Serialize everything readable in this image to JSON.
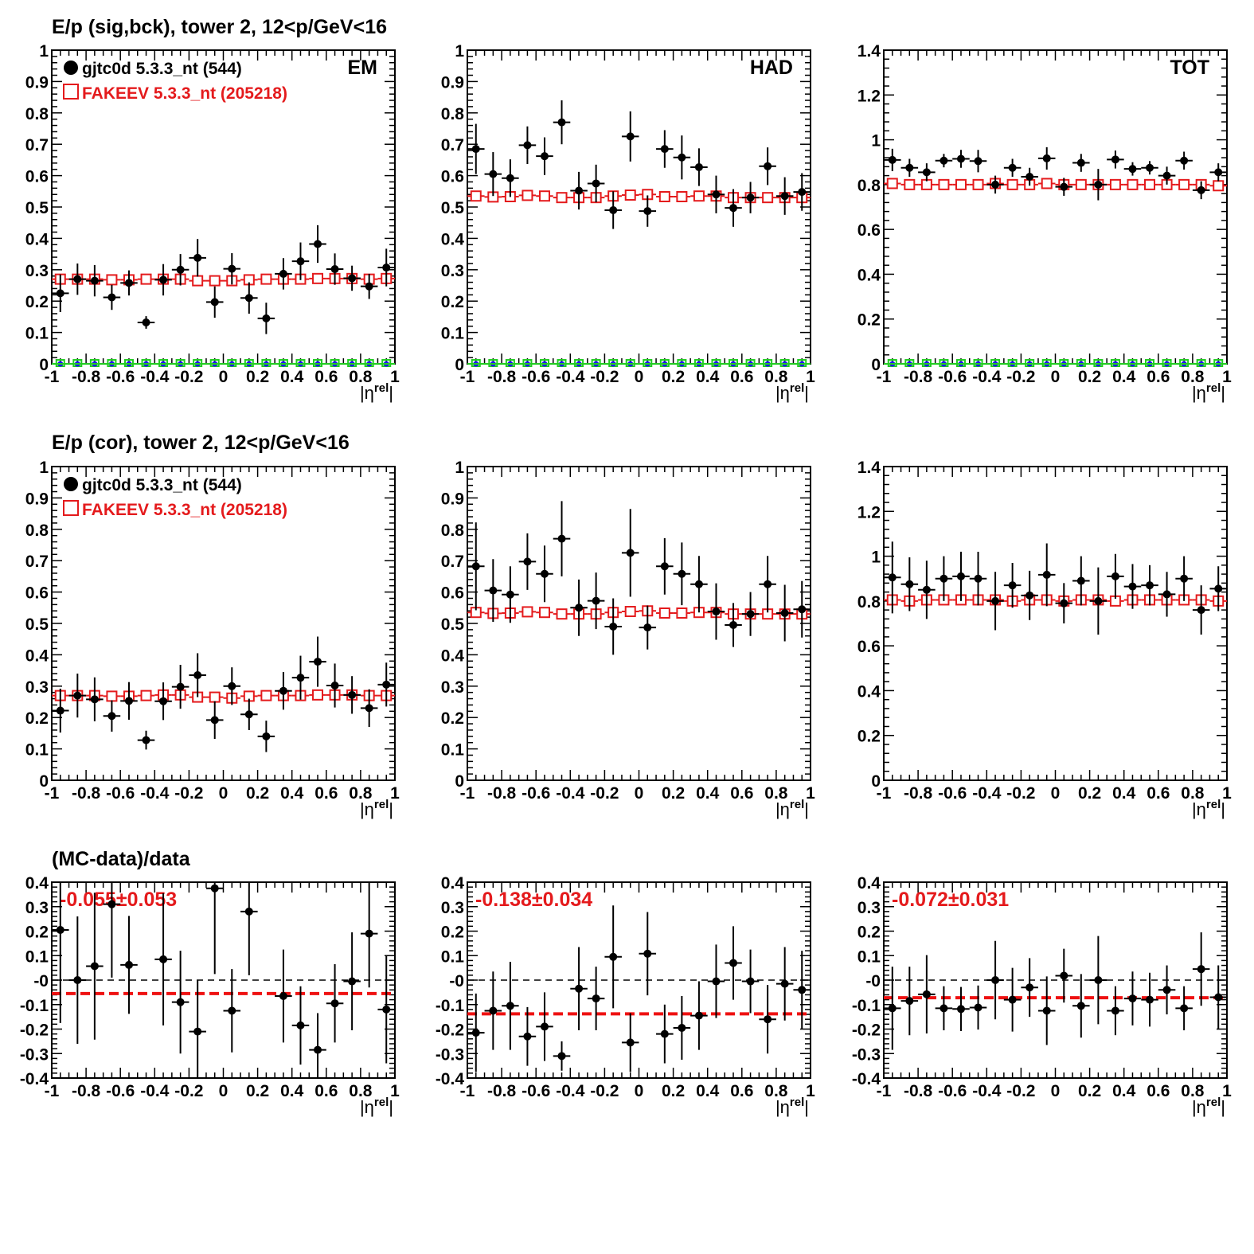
{
  "colors": {
    "data": "#000000",
    "mc": "#e41a1c",
    "bck_mc": "#22cc22",
    "bck_data": "#1a1aee",
    "fit": "#ee1111"
  },
  "row_titles": [
    "E/p (sig,bck), tower 2, 12<p/GeV<16",
    "E/p (cor), tower 2, 12<p/GeV<16",
    "(MC-data)/data"
  ],
  "legend": {
    "data_label": "gjtc0d 5.3.3_nt (544)",
    "mc_label": "FAKEEV 5.3.3_nt (205218)"
  },
  "chart_data": [
    {
      "id": "sigbck-em",
      "type": "scatter",
      "label": "EM",
      "xlabel": "|η^rel|",
      "xlim": [
        -1,
        1
      ],
      "ylim": [
        0,
        1
      ],
      "legend": true,
      "background": true,
      "x": [
        -0.95,
        -0.85,
        -0.75,
        -0.65,
        -0.55,
        -0.45,
        -0.35,
        -0.25,
        -0.15,
        -0.05,
        0.05,
        0.15,
        0.25,
        0.35,
        0.45,
        0.55,
        0.65,
        0.75,
        0.85,
        0.95
      ],
      "series": [
        {
          "name": "gjtc0d 5.3.3_nt (544)",
          "values": [
            0.225,
            0.27,
            0.265,
            0.212,
            0.258,
            0.132,
            0.268,
            0.3,
            0.338,
            0.197,
            0.303,
            0.21,
            0.145,
            0.287,
            0.327,
            0.382,
            0.302,
            0.273,
            0.247,
            0.307
          ],
          "errors": [
            0.06,
            0.05,
            0.05,
            0.04,
            0.04,
            0.02,
            0.05,
            0.05,
            0.06,
            0.05,
            0.05,
            0.05,
            0.05,
            0.05,
            0.06,
            0.06,
            0.05,
            0.04,
            0.04,
            0.06
          ]
        },
        {
          "name": "FAKEEV 5.3.3_nt (205218)",
          "values": [
            0.27,
            0.27,
            0.27,
            0.268,
            0.268,
            0.27,
            0.27,
            0.27,
            0.265,
            0.265,
            0.265,
            0.268,
            0.27,
            0.27,
            0.27,
            0.272,
            0.272,
            0.272,
            0.27,
            0.272
          ]
        }
      ]
    },
    {
      "id": "sigbck-had",
      "type": "scatter",
      "label": "HAD",
      "xlabel": "|η^rel|",
      "xlim": [
        -1,
        1
      ],
      "ylim": [
        0,
        1
      ],
      "legend": false,
      "background": true,
      "x": [
        -0.95,
        -0.85,
        -0.75,
        -0.65,
        -0.55,
        -0.45,
        -0.35,
        -0.25,
        -0.15,
        -0.05,
        0.05,
        0.15,
        0.25,
        0.35,
        0.45,
        0.55,
        0.65,
        0.75,
        0.85,
        0.95
      ],
      "series": [
        {
          "name": "gjtc0d 5.3.3_nt (544)",
          "values": [
            0.685,
            0.605,
            0.592,
            0.697,
            0.662,
            0.77,
            0.552,
            0.575,
            0.49,
            0.725,
            0.487,
            0.685,
            0.658,
            0.627,
            0.54,
            0.497,
            0.53,
            0.63,
            0.535,
            0.548
          ],
          "errors": [
            0.08,
            0.07,
            0.06,
            0.06,
            0.06,
            0.07,
            0.06,
            0.06,
            0.06,
            0.08,
            0.05,
            0.06,
            0.07,
            0.06,
            0.06,
            0.06,
            0.05,
            0.06,
            0.06,
            0.06
          ]
        },
        {
          "name": "FAKEEV 5.3.3_nt (205218)",
          "values": [
            0.535,
            0.532,
            0.533,
            0.537,
            0.535,
            0.53,
            0.53,
            0.53,
            0.535,
            0.538,
            0.54,
            0.533,
            0.533,
            0.535,
            0.535,
            0.53,
            0.53,
            0.53,
            0.53,
            0.53
          ]
        }
      ]
    },
    {
      "id": "sigbck-tot",
      "type": "scatter",
      "label": "TOT",
      "xlabel": "|η^rel|",
      "xlim": [
        -1,
        1
      ],
      "ylim": [
        0,
        1.4
      ],
      "legend": false,
      "background": true,
      "x": [
        -0.95,
        -0.85,
        -0.75,
        -0.65,
        -0.55,
        -0.45,
        -0.35,
        -0.25,
        -0.15,
        -0.05,
        0.05,
        0.15,
        0.25,
        0.35,
        0.45,
        0.55,
        0.65,
        0.75,
        0.85,
        0.95
      ],
      "series": [
        {
          "name": "gjtc0d 5.3.3_nt (544)",
          "values": [
            0.91,
            0.875,
            0.855,
            0.907,
            0.915,
            0.905,
            0.8,
            0.875,
            0.835,
            0.917,
            0.79,
            0.897,
            0.8,
            0.912,
            0.87,
            0.875,
            0.84,
            0.907,
            0.775,
            0.855
          ],
          "errors": [
            0.05,
            0.04,
            0.04,
            0.03,
            0.04,
            0.05,
            0.04,
            0.04,
            0.04,
            0.05,
            0.04,
            0.04,
            0.07,
            0.04,
            0.03,
            0.03,
            0.04,
            0.04,
            0.04,
            0.04
          ]
        },
        {
          "name": "FAKEEV 5.3.3_nt (205218)",
          "values": [
            0.805,
            0.8,
            0.8,
            0.8,
            0.8,
            0.8,
            0.805,
            0.8,
            0.8,
            0.805,
            0.8,
            0.8,
            0.8,
            0.8,
            0.8,
            0.8,
            0.8,
            0.8,
            0.8,
            0.795
          ]
        }
      ]
    },
    {
      "id": "cor-em",
      "type": "scatter",
      "label": "",
      "xlabel": "|η^rel|",
      "xlim": [
        -1,
        1
      ],
      "ylim": [
        0,
        1
      ],
      "legend": true,
      "background": false,
      "x": [
        -0.95,
        -0.85,
        -0.75,
        -0.65,
        -0.55,
        -0.45,
        -0.35,
        -0.25,
        -0.15,
        -0.05,
        0.05,
        0.15,
        0.25,
        0.35,
        0.45,
        0.55,
        0.65,
        0.75,
        0.85,
        0.95
      ],
      "series": [
        {
          "name": "gjtc0d 5.3.3_nt (544)",
          "values": [
            0.222,
            0.27,
            0.258,
            0.205,
            0.253,
            0.128,
            0.252,
            0.298,
            0.335,
            0.192,
            0.3,
            0.21,
            0.14,
            0.285,
            0.327,
            0.378,
            0.302,
            0.272,
            0.23,
            0.305
          ],
          "errors": [
            0.07,
            0.07,
            0.07,
            0.05,
            0.06,
            0.03,
            0.06,
            0.07,
            0.07,
            0.06,
            0.06,
            0.05,
            0.05,
            0.06,
            0.07,
            0.08,
            0.07,
            0.06,
            0.06,
            0.07
          ]
        },
        {
          "name": "FAKEEV 5.3.3_nt (205218)",
          "values": [
            0.27,
            0.27,
            0.27,
            0.268,
            0.268,
            0.27,
            0.272,
            0.272,
            0.265,
            0.265,
            0.262,
            0.268,
            0.27,
            0.27,
            0.27,
            0.272,
            0.272,
            0.272,
            0.27,
            0.27
          ]
        }
      ]
    },
    {
      "id": "cor-had",
      "type": "scatter",
      "label": "",
      "xlabel": "|η^rel|",
      "xlim": [
        -1,
        1
      ],
      "ylim": [
        0,
        1
      ],
      "legend": false,
      "background": false,
      "x": [
        -0.95,
        -0.85,
        -0.75,
        -0.65,
        -0.55,
        -0.45,
        -0.35,
        -0.25,
        -0.15,
        -0.05,
        0.05,
        0.15,
        0.25,
        0.35,
        0.45,
        0.55,
        0.65,
        0.75,
        0.85,
        0.95
      ],
      "series": [
        {
          "name": "gjtc0d 5.3.3_nt (544)",
          "values": [
            0.682,
            0.605,
            0.592,
            0.697,
            0.658,
            0.77,
            0.55,
            0.572,
            0.49,
            0.725,
            0.487,
            0.682,
            0.658,
            0.625,
            0.538,
            0.495,
            0.53,
            0.625,
            0.533,
            0.545
          ],
          "errors": [
            0.14,
            0.1,
            0.09,
            0.09,
            0.09,
            0.12,
            0.09,
            0.09,
            0.09,
            0.14,
            0.07,
            0.09,
            0.1,
            0.09,
            0.09,
            0.07,
            0.07,
            0.09,
            0.09,
            0.09
          ]
        },
        {
          "name": "FAKEEV 5.3.3_nt (205218)",
          "values": [
            0.535,
            0.532,
            0.533,
            0.537,
            0.535,
            0.53,
            0.53,
            0.53,
            0.535,
            0.538,
            0.54,
            0.533,
            0.533,
            0.535,
            0.535,
            0.53,
            0.53,
            0.53,
            0.53,
            0.53
          ]
        }
      ]
    },
    {
      "id": "cor-tot",
      "type": "scatter",
      "label": "",
      "xlabel": "|η^rel|",
      "xlim": [
        -1,
        1
      ],
      "ylim": [
        0,
        1.4
      ],
      "legend": false,
      "background": false,
      "x": [
        -0.95,
        -0.85,
        -0.75,
        -0.65,
        -0.55,
        -0.45,
        -0.35,
        -0.25,
        -0.15,
        -0.05,
        0.05,
        0.15,
        0.25,
        0.35,
        0.45,
        0.55,
        0.65,
        0.75,
        0.85,
        0.95
      ],
      "series": [
        {
          "name": "gjtc0d 5.3.3_nt (544)",
          "values": [
            0.905,
            0.875,
            0.85,
            0.9,
            0.91,
            0.9,
            0.8,
            0.87,
            0.825,
            0.917,
            0.79,
            0.89,
            0.8,
            0.91,
            0.865,
            0.87,
            0.83,
            0.9,
            0.76,
            0.855
          ],
          "errors": [
            0.16,
            0.12,
            0.13,
            0.1,
            0.11,
            0.12,
            0.13,
            0.1,
            0.11,
            0.14,
            0.09,
            0.11,
            0.15,
            0.1,
            0.1,
            0.09,
            0.1,
            0.1,
            0.11,
            0.1
          ]
        },
        {
          "name": "FAKEEV 5.3.3_nt (205218)",
          "values": [
            0.805,
            0.8,
            0.805,
            0.805,
            0.805,
            0.805,
            0.805,
            0.8,
            0.805,
            0.805,
            0.8,
            0.805,
            0.805,
            0.8,
            0.805,
            0.805,
            0.805,
            0.805,
            0.805,
            0.8
          ]
        }
      ]
    },
    {
      "id": "ratio-em",
      "type": "scatter",
      "label": "",
      "xlabel": "|η^rel|",
      "xlim": [
        -1,
        1
      ],
      "ylim": [
        -0.4,
        0.4
      ],
      "fit_text": "-0.055±0.053",
      "fit_value": -0.055,
      "x": [
        -0.95,
        -0.85,
        -0.75,
        -0.65,
        -0.55,
        -0.35,
        -0.25,
        -0.15,
        -0.05,
        0.05,
        0.15,
        0.35,
        0.45,
        0.55,
        0.65,
        0.75,
        0.85,
        0.95
      ],
      "series": [
        {
          "name": "gjtc0d 5.3.3_nt (544)",
          "values": [
            0.205,
            0.0,
            0.057,
            0.31,
            0.062,
            0.085,
            -0.09,
            -0.21,
            0.375,
            -0.125,
            0.28,
            -0.065,
            -0.185,
            -0.285,
            -0.095,
            -0.005,
            0.19,
            -0.12
          ],
          "errors": [
            0.38,
            0.26,
            0.3,
            0.3,
            0.2,
            0.27,
            0.21,
            0.21,
            0.35,
            0.17,
            0.26,
            0.19,
            0.16,
            0.15,
            0.16,
            0.2,
            0.22,
            0.22
          ]
        }
      ]
    },
    {
      "id": "ratio-had",
      "type": "scatter",
      "label": "",
      "xlabel": "|η^rel|",
      "xlim": [
        -1,
        1
      ],
      "ylim": [
        -0.4,
        0.4
      ],
      "fit_text": "-0.138±0.034",
      "fit_value": -0.138,
      "x": [
        -0.95,
        -0.85,
        -0.75,
        -0.65,
        -0.55,
        -0.45,
        -0.35,
        -0.25,
        -0.15,
        -0.05,
        0.05,
        0.15,
        0.25,
        0.35,
        0.45,
        0.55,
        0.65,
        0.75,
        0.85,
        0.95
      ],
      "series": [
        {
          "name": "gjtc0d 5.3.3_nt (544)",
          "values": [
            -0.215,
            -0.125,
            -0.105,
            -0.23,
            -0.19,
            -0.31,
            -0.035,
            -0.075,
            0.095,
            -0.255,
            0.108,
            -0.22,
            -0.195,
            -0.145,
            -0.005,
            0.07,
            -0.005,
            -0.16,
            -0.015,
            -0.04
          ],
          "errors": [
            0.16,
            0.16,
            0.18,
            0.12,
            0.14,
            0.06,
            0.17,
            0.13,
            0.21,
            0.12,
            0.17,
            0.12,
            0.13,
            0.14,
            0.15,
            0.15,
            0.13,
            0.14,
            0.15,
            0.16
          ]
        }
      ]
    },
    {
      "id": "ratio-tot",
      "type": "scatter",
      "label": "",
      "xlabel": "|η^rel|",
      "xlim": [
        -1,
        1
      ],
      "ylim": [
        -0.4,
        0.4
      ],
      "fit_text": "-0.072±0.031",
      "fit_value": -0.072,
      "x": [
        -0.95,
        -0.85,
        -0.75,
        -0.65,
        -0.55,
        -0.45,
        -0.35,
        -0.25,
        -0.15,
        -0.05,
        0.05,
        0.15,
        0.25,
        0.35,
        0.45,
        0.55,
        0.65,
        0.75,
        0.85,
        0.95
      ],
      "series": [
        {
          "name": "gjtc0d 5.3.3_nt (544)",
          "values": [
            -0.115,
            -0.085,
            -0.058,
            -0.115,
            -0.118,
            -0.112,
            0.0,
            -0.08,
            -0.03,
            -0.125,
            0.018,
            -0.105,
            0.0,
            -0.125,
            -0.075,
            -0.08,
            -0.04,
            -0.115,
            0.045,
            -0.07
          ],
          "errors": [
            0.17,
            0.14,
            0.16,
            0.09,
            0.09,
            0.09,
            0.16,
            0.13,
            0.12,
            0.14,
            0.11,
            0.13,
            0.18,
            0.1,
            0.11,
            0.11,
            0.1,
            0.09,
            0.15,
            0.13
          ]
        }
      ]
    }
  ]
}
